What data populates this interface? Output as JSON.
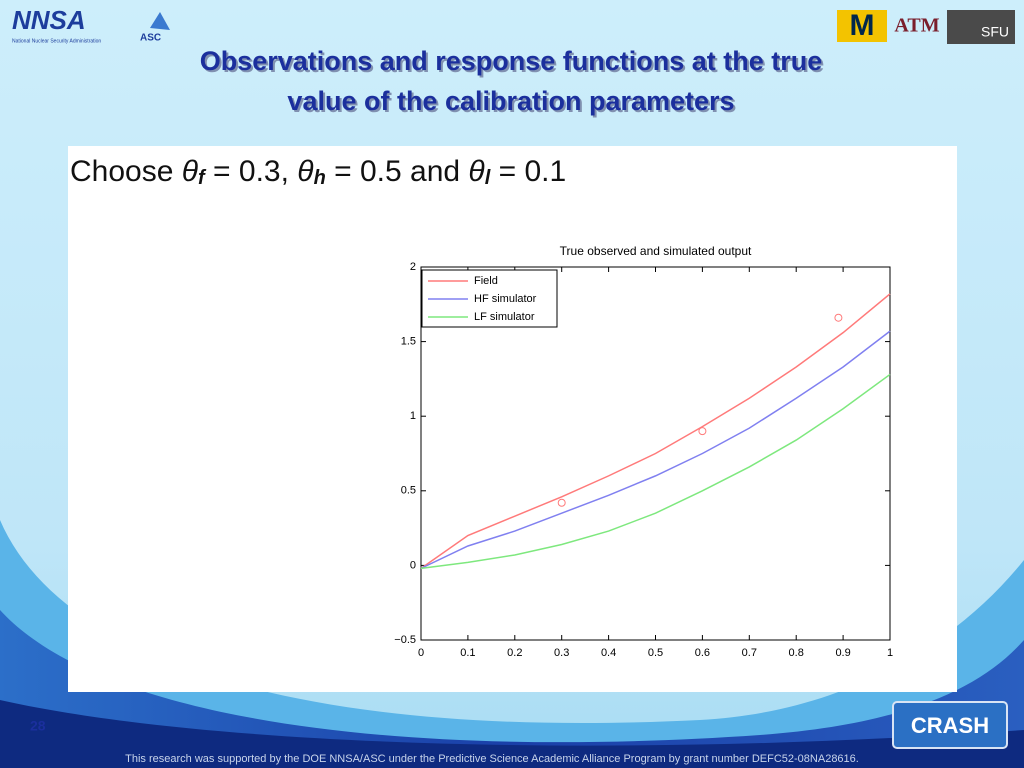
{
  "header": {
    "logos": [
      "NNSA",
      "National Nuclear Security Administration",
      "ASC",
      "M",
      "ATM",
      "SFU"
    ],
    "title": [
      "Observations and response functions at the true",
      "value of the calibration parameters"
    ]
  },
  "statement": [
    {
      "text": "Choose "
    },
    {
      "text": "θ",
      "italic": true
    },
    {
      "text": "f",
      "sub": true
    },
    {
      "text": " = 0.3, "
    },
    {
      "text": "θ",
      "italic": true
    },
    {
      "text": "h",
      "sub": true
    },
    {
      "text": " = 0.5 and "
    },
    {
      "text": "θ",
      "italic": true
    },
    {
      "text": "l",
      "sub": true
    },
    {
      "text": " = 0.1"
    }
  ],
  "chart_data": {
    "type": "line",
    "title": "True observed and simulated output",
    "x": [
      0,
      0.1,
      0.2,
      0.3,
      0.4,
      0.5,
      0.6,
      0.7,
      0.8,
      0.9,
      1
    ],
    "series": [
      {
        "name": "Field",
        "color": "#ff7a7a",
        "values": [
          -0.02,
          0.2,
          0.33,
          0.46,
          0.6,
          0.75,
          0.93,
          1.12,
          1.33,
          1.56,
          1.82
        ]
      },
      {
        "name": "HF simulator",
        "color": "#8080f0",
        "values": [
          -0.02,
          0.13,
          0.23,
          0.35,
          0.47,
          0.6,
          0.75,
          0.92,
          1.12,
          1.33,
          1.57
        ]
      },
      {
        "name": "LF simulator",
        "color": "#7ee87e",
        "values": [
          -0.02,
          0.02,
          0.07,
          0.14,
          0.23,
          0.35,
          0.5,
          0.66,
          0.84,
          1.05,
          1.28
        ]
      }
    ],
    "observations": {
      "type": "scatter",
      "color": "#ff7a7a",
      "x": [
        0.3,
        0.6,
        0.89
      ],
      "values": [
        0.42,
        0.9,
        1.66
      ]
    },
    "xlim": [
      0,
      1
    ],
    "ylim": [
      -0.5,
      2
    ],
    "xticks": [
      0,
      0.1,
      0.2,
      0.3,
      0.4,
      0.5,
      0.6,
      0.7,
      0.8,
      0.9,
      1
    ],
    "yticks": [
      {
        "value": -0.5,
        "label": "−0.5"
      },
      0,
      0.5,
      1,
      1.5,
      2
    ],
    "legend": "upper left",
    "grid": false
  },
  "footer": {
    "page_number": "28",
    "logo": "CRASH",
    "acknowledgement": "This research was supported by the DOE NNSA/ASC under the Predictive Science Academic Alliance Program by grant number DEFC52-08NA28616."
  }
}
